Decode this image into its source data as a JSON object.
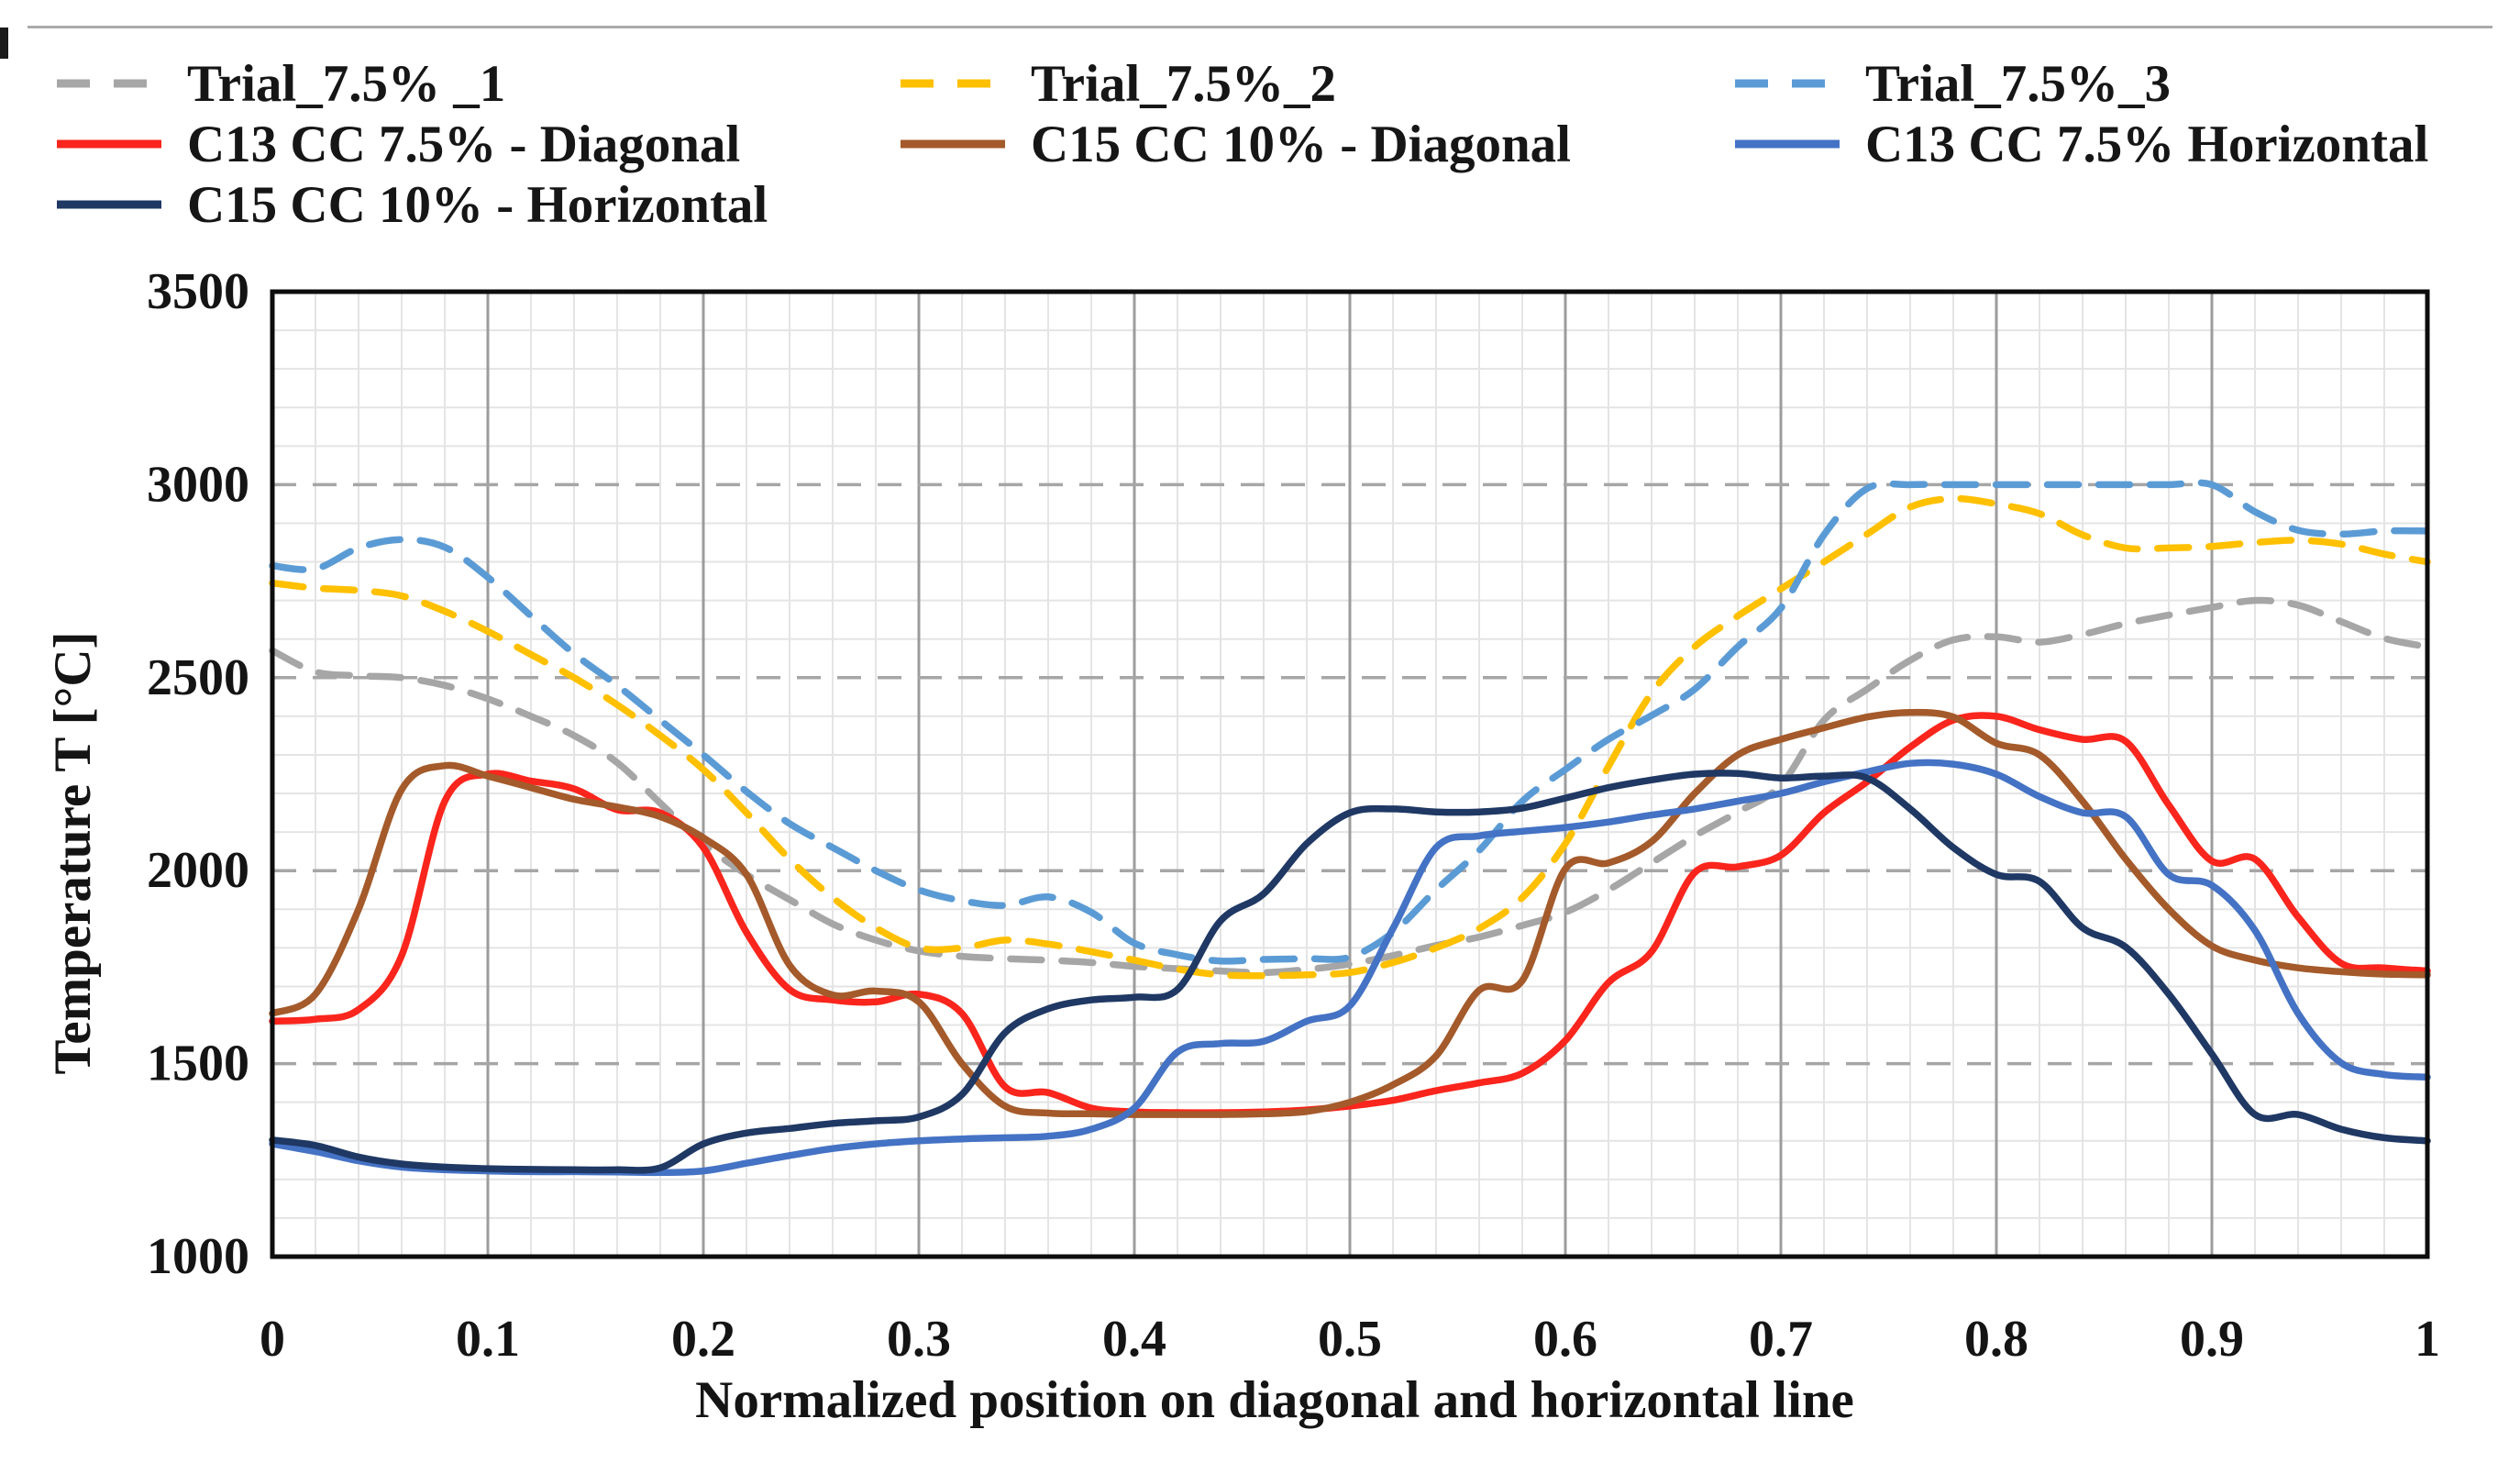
{
  "figure": {
    "kind": "excel-style line chart from a scientific paper",
    "top_rule_color": "#ababab"
  },
  "legend": {
    "position": "top",
    "rows": 3,
    "columns": 3,
    "items": [
      {
        "series": 0,
        "row": 0,
        "col": 0
      },
      {
        "series": 1,
        "row": 0,
        "col": 1
      },
      {
        "series": 2,
        "row": 0,
        "col": 2
      },
      {
        "series": 3,
        "row": 1,
        "col": 0
      },
      {
        "series": 4,
        "row": 1,
        "col": 1
      },
      {
        "series": 5,
        "row": 1,
        "col": 2
      },
      {
        "series": 6,
        "row": 2,
        "col": 0
      }
    ]
  },
  "chart_data": {
    "type": "line",
    "title": "",
    "xlabel": "Normalized position on diagonal and horizontal line",
    "ylabel": "Temperature  T [°C]",
    "xlim": [
      0,
      1
    ],
    "ylim": [
      1000,
      3500
    ],
    "xticks": [
      "0",
      "0.1",
      "0.2",
      "0.3",
      "0.4",
      "0.5",
      "0.6",
      "0.7",
      "0.8",
      "0.9",
      "1"
    ],
    "yticks": [
      "1000",
      "1500",
      "2000",
      "2500",
      "3000",
      "3500"
    ],
    "grid": {
      "minor_x_step": 0.02,
      "minor_y_step": 100,
      "major_x_step": 0.1,
      "major_y_step": 500,
      "major_horizontal_style": "dashed"
    },
    "x": [
      0,
      0.02,
      0.04,
      0.06,
      0.08,
      0.1,
      0.12,
      0.14,
      0.16,
      0.18,
      0.2,
      0.22,
      0.24,
      0.26,
      0.28,
      0.3,
      0.32,
      0.34,
      0.36,
      0.38,
      0.4,
      0.42,
      0.44,
      0.46,
      0.48,
      0.5,
      0.52,
      0.54,
      0.56,
      0.58,
      0.6,
      0.62,
      0.64,
      0.66,
      0.68,
      0.7,
      0.72,
      0.74,
      0.76,
      0.78,
      0.8,
      0.82,
      0.84,
      0.86,
      0.88,
      0.9,
      0.92,
      0.94,
      0.96,
      0.98,
      1.0
    ],
    "series": [
      {
        "id": "trial-1",
        "name": "Trial_7.5% _1",
        "color": "#A6A6A6",
        "dash": true,
        "values": [
          2570,
          2515,
          2505,
          2500,
          2480,
          2445,
          2400,
          2350,
          2280,
          2175,
          2070,
          1990,
          1925,
          1862,
          1820,
          1792,
          1778,
          1772,
          1768,
          1762,
          1752,
          1746,
          1740,
          1736,
          1744,
          1758,
          1780,
          1806,
          1828,
          1858,
          1892,
          1950,
          2020,
          2090,
          2152,
          2222,
          2390,
          2470,
          2545,
          2598,
          2606,
          2592,
          2612,
          2640,
          2662,
          2682,
          2700,
          2688,
          2645,
          2602,
          2580
        ]
      },
      {
        "id": "trial-2",
        "name": "Trial_7.5%_2",
        "color": "#FFC000",
        "dash": true,
        "values": [
          2745,
          2732,
          2726,
          2712,
          2672,
          2620,
          2560,
          2500,
          2430,
          2350,
          2262,
          2150,
          2030,
          1930,
          1852,
          1800,
          1800,
          1820,
          1810,
          1790,
          1768,
          1745,
          1730,
          1728,
          1730,
          1736,
          1762,
          1800,
          1850,
          1930,
          2070,
          2270,
          2460,
          2580,
          2660,
          2730,
          2800,
          2872,
          2942,
          2964,
          2950,
          2925,
          2870,
          2836,
          2836,
          2840,
          2850,
          2856,
          2846,
          2820,
          2800
        ]
      },
      {
        "id": "trial-3",
        "name": "Trial_7.5%_3",
        "color": "#5B9BD5",
        "dash": true,
        "values": [
          2790,
          2782,
          2836,
          2858,
          2838,
          2760,
          2660,
          2562,
          2480,
          2390,
          2300,
          2205,
          2122,
          2060,
          2000,
          1950,
          1922,
          1910,
          1932,
          1892,
          1812,
          1782,
          1766,
          1770,
          1772,
          1776,
          1840,
          1950,
          2052,
          2180,
          2262,
          2340,
          2402,
          2470,
          2580,
          2680,
          2870,
          2990,
          3000,
          3000,
          3000,
          3000,
          3000,
          3000,
          3000,
          3000,
          2930,
          2882,
          2872,
          2880,
          2880
        ]
      },
      {
        "id": "c13-diagonal",
        "name": "C13 CC 7.5% - Diagonal",
        "color": "#FA251C",
        "dash": false,
        "values": [
          1610,
          1615,
          1640,
          1780,
          2180,
          2250,
          2232,
          2212,
          2158,
          2150,
          2060,
          1840,
          1692,
          1665,
          1660,
          1680,
          1630,
          1440,
          1425,
          1385,
          1375,
          1373,
          1373,
          1375,
          1380,
          1390,
          1405,
          1430,
          1450,
          1475,
          1560,
          1710,
          1790,
          1995,
          2010,
          2040,
          2150,
          2230,
          2320,
          2390,
          2400,
          2365,
          2340,
          2335,
          2170,
          2025,
          2030,
          1880,
          1760,
          1748,
          1740
        ]
      },
      {
        "id": "c15-diagonal",
        "name": "C15  CC 10% - Diagonal",
        "color": "#A45A2A",
        "dash": false,
        "values": [
          1630,
          1680,
          1900,
          2210,
          2272,
          2245,
          2215,
          2185,
          2165,
          2140,
          2085,
          1990,
          1755,
          1678,
          1688,
          1660,
          1500,
          1390,
          1372,
          1370,
          1368,
          1368,
          1368,
          1370,
          1376,
          1400,
          1445,
          1520,
          1690,
          1715,
          2005,
          2020,
          2075,
          2200,
          2300,
          2340,
          2370,
          2398,
          2410,
          2398,
          2330,
          2300,
          2180,
          2030,
          1900,
          1805,
          1768,
          1748,
          1738,
          1732,
          1730
        ]
      },
      {
        "id": "c13-horizontal",
        "name": "C13  CC 7.5%   Horizontal",
        "color": "#4472C4",
        "dash": false,
        "values": [
          1292,
          1272,
          1248,
          1232,
          1225,
          1222,
          1220,
          1220,
          1219,
          1218,
          1222,
          1242,
          1262,
          1280,
          1292,
          1300,
          1305,
          1308,
          1312,
          1330,
          1385,
          1530,
          1552,
          1558,
          1610,
          1650,
          1850,
          2060,
          2090,
          2102,
          2112,
          2126,
          2144,
          2160,
          2180,
          2200,
          2230,
          2256,
          2278,
          2276,
          2250,
          2192,
          2150,
          2140,
          1990,
          1962,
          1845,
          1630,
          1502,
          1472,
          1465
        ]
      },
      {
        "id": "c15-horizontal",
        "name": "C15  CC 10% - Horizontal",
        "color": "#1F3864",
        "dash": false,
        "values": [
          1302,
          1288,
          1258,
          1240,
          1232,
          1228,
          1226,
          1225,
          1225,
          1230,
          1292,
          1320,
          1332,
          1345,
          1352,
          1362,
          1420,
          1580,
          1642,
          1665,
          1672,
          1692,
          1870,
          1940,
          2070,
          2150,
          2160,
          2152,
          2152,
          2162,
          2188,
          2215,
          2235,
          2250,
          2252,
          2240,
          2245,
          2240,
          2160,
          2060,
          1990,
          1972,
          1852,
          1802,
          1680,
          1525,
          1368,
          1368,
          1330,
          1308,
          1300
        ]
      }
    ]
  }
}
